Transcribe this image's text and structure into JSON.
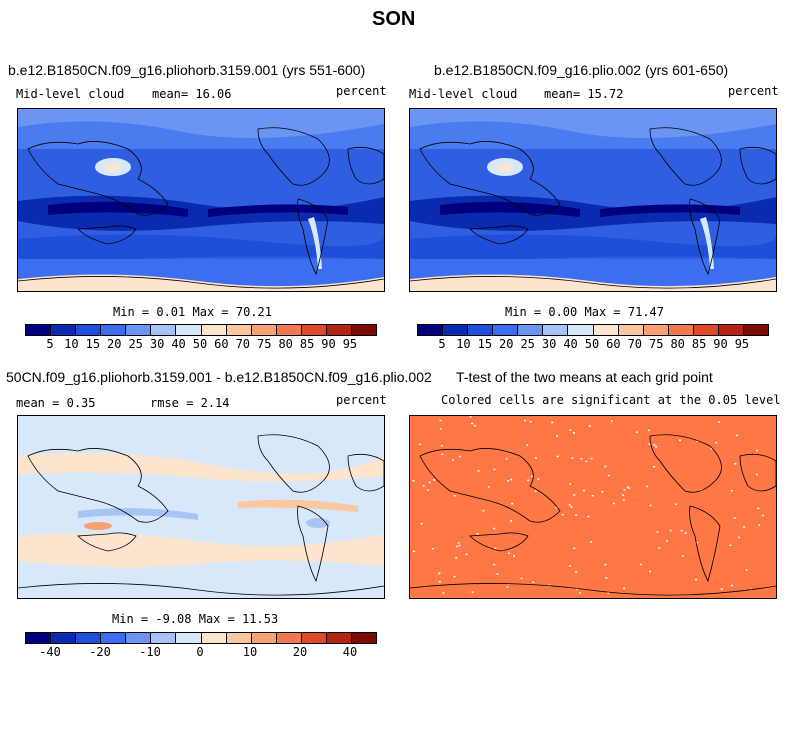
{
  "figure_title": "SON",
  "colors": {
    "scale12": [
      "#00007f",
      "#0a2ab0",
      "#1f4fd8",
      "#3b6ef0",
      "#6b95f2",
      "#a6c4f5",
      "#d7e8fb",
      "#fde4cf",
      "#fbc79f",
      "#f7a172",
      "#ef7a4e",
      "#dd4a2a",
      "#b62411",
      "#7e0c06"
    ],
    "diff": [
      "#00007f",
      "#0a2ab0",
      "#1f4fd8",
      "#3b6ef0",
      "#6b95f2",
      "#a6c4f5",
      "#d7e8fb",
      "#fde4cf",
      "#fbc79f",
      "#f7a172",
      "#ef7a4e",
      "#dd4a2a",
      "#b62411",
      "#7e0c06"
    ],
    "ttest": "#ff7744"
  },
  "panels": [
    {
      "title": "b.e12.B1850CN.f09_g16.pliohorb.3159.001 (yrs 551-600)",
      "variable": "Mid-level cloud",
      "mean_label": "mean=",
      "mean_value": "16.06",
      "units": "percent",
      "min_label": "Min =",
      "min_value": "0.01",
      "max_label": "Max =",
      "max_value": "70.21",
      "colorbar_ticks": [
        "5",
        "10",
        "15",
        "20",
        "25",
        "30",
        "40",
        "50",
        "60",
        "70",
        "75",
        "80",
        "85",
        "90",
        "95"
      ]
    },
    {
      "title": "b.e12.B1850CN.f09_g16.plio.002 (yrs 601-650)",
      "variable": "Mid-level cloud",
      "mean_label": "mean=",
      "mean_value": "15.72",
      "units": "percent",
      "min_label": "Min =",
      "min_value": "0.00",
      "max_label": "Max =",
      "max_value": "71.47",
      "colorbar_ticks": [
        "5",
        "10",
        "15",
        "20",
        "25",
        "30",
        "40",
        "50",
        "60",
        "70",
        "75",
        "80",
        "85",
        "90",
        "95"
      ]
    },
    {
      "title": "50CN.f09_g16.pliohorb.3159.001 - b.e12.B1850CN.f09_g16.plio.002",
      "mean_label": "mean =",
      "mean_value": "0.35",
      "rmse_label": "rmse =",
      "rmse_value": "2.14",
      "units": "percent",
      "min_label": "Min =",
      "min_value": "-9.08",
      "max_label": "Max =",
      "max_value": "11.53",
      "colorbar_ticks": [
        "-40",
        "-20",
        "-10",
        "0",
        "10",
        "20",
        "40"
      ]
    },
    {
      "title": "T-test of the two means at each grid point",
      "subtitle": "Colored cells are significant at the 0.05 level"
    }
  ]
}
